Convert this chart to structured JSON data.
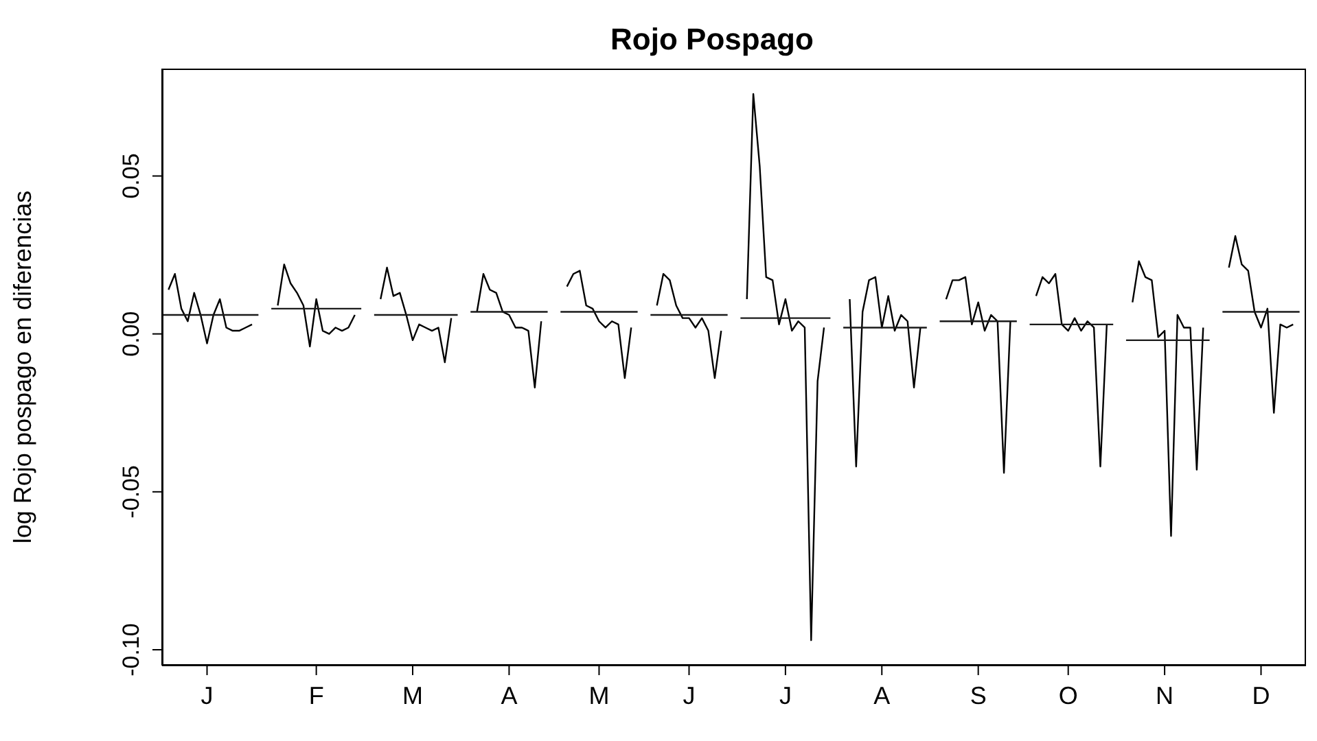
{
  "chart_data": {
    "type": "line",
    "title": "Rojo Pospago",
    "ylabel": "log Rojo pospago en diferencias",
    "categories": [
      null,
      null,
      null,
      null,
      null,
      null,
      null,
      "J",
      null,
      null,
      null,
      null,
      null,
      null,
      null,
      null,
      null,
      null,
      null,
      null,
      null,
      null,
      null,
      null,
      "F",
      null,
      null,
      null,
      null,
      null,
      null,
      null,
      null,
      null,
      null,
      null,
      null,
      null,
      null,
      "M",
      null,
      null,
      null,
      null,
      null,
      null,
      null,
      null,
      null,
      null,
      null,
      null,
      null,
      null,
      "A",
      null,
      null,
      null,
      null,
      null,
      null,
      null,
      null,
      null,
      null,
      null,
      null,
      null,
      "M",
      null,
      null,
      null,
      null,
      null,
      null,
      null,
      null,
      null,
      null,
      null,
      null,
      null,
      "J",
      null,
      null,
      null,
      null,
      null,
      null,
      null,
      null,
      null,
      null,
      null,
      null,
      null,
      null,
      "J",
      null,
      null,
      null,
      null,
      null,
      null,
      null,
      null,
      null,
      null,
      null,
      null,
      null,
      null,
      "A",
      null,
      null,
      null,
      null,
      null,
      null,
      null,
      null,
      null,
      null,
      null,
      null,
      null,
      null,
      "S",
      null,
      null,
      null,
      null,
      null,
      null,
      null,
      null,
      null,
      null,
      null,
      null,
      null,
      "O",
      null,
      null,
      null,
      null,
      null,
      null,
      null,
      null,
      null,
      null,
      null,
      null,
      null,
      null,
      "N",
      null,
      null,
      null,
      null,
      null,
      null,
      null,
      null,
      null,
      null,
      null,
      null,
      null,
      null,
      "D",
      null,
      null,
      null,
      null,
      null,
      null,
      null
    ],
    "ylim": [
      -0.105,
      0.084
    ],
    "yticks": [
      {
        "value": -0.1,
        "label": "-0.10"
      },
      {
        "value": -0.05,
        "label": "-0.05"
      },
      {
        "value": 0,
        "label": "0.00"
      },
      {
        "value": 0.05,
        "label": "0.05"
      }
    ],
    "grid": false,
    "marker": "none",
    "line_style": "solid",
    "series": [
      {
        "color": "#000000",
        "values": [
          null,
          0.014,
          0.019,
          0.008,
          0.004,
          0.013,
          0.006,
          -0.003,
          0.006,
          0.011,
          0.002,
          0.001,
          0.001,
          0.002,
          0.003,
          null,
          null,
          null,
          0.009,
          0.022,
          0.016,
          0.013,
          0.009,
          -0.004,
          0.011,
          0.001,
          0.0,
          0.002,
          0.001,
          0.002,
          0.006,
          null,
          null,
          null,
          0.011,
          0.021,
          0.012,
          0.013,
          0.006,
          -0.002,
          0.003,
          0.002,
          0.001,
          0.002,
          -0.009,
          0.005,
          null,
          null,
          null,
          0.007,
          0.019,
          0.014,
          0.013,
          0.007,
          0.006,
          0.002,
          0.002,
          0.001,
          -0.017,
          0.004,
          null,
          null,
          null,
          0.015,
          0.019,
          0.02,
          0.009,
          0.008,
          0.004,
          0.002,
          0.004,
          0.003,
          -0.014,
          0.002,
          null,
          null,
          null,
          0.009,
          0.019,
          0.017,
          0.009,
          0.005,
          0.005,
          0.002,
          0.005,
          0.001,
          -0.014,
          0.001,
          null,
          null,
          null,
          0.011,
          0.076,
          0.053,
          0.018,
          0.017,
          0.003,
          0.011,
          0.001,
          0.004,
          0.002,
          -0.097,
          -0.015,
          0.002,
          null,
          null,
          null,
          0.011,
          -0.042,
          0.007,
          0.017,
          0.018,
          0.002,
          0.012,
          0.001,
          0.006,
          0.004,
          -0.017,
          0.002,
          null,
          null,
          null,
          0.011,
          0.017,
          0.017,
          0.018,
          0.003,
          0.01,
          0.001,
          0.006,
          0.004,
          -0.044,
          0.004,
          null,
          null,
          null,
          0.012,
          0.018,
          0.016,
          0.019,
          0.003,
          0.001,
          0.005,
          0.001,
          0.004,
          0.002,
          -0.042,
          0.003,
          null,
          null,
          null,
          0.01,
          0.023,
          0.018,
          0.017,
          -0.001,
          0.001,
          -0.064,
          0.006,
          0.002,
          0.002,
          -0.043,
          0.002,
          null,
          null,
          null,
          0.021,
          0.031,
          0.022,
          0.02,
          0.007,
          0.002,
          0.008,
          -0.025,
          0.003,
          0.002,
          0.003,
          null,
          null
        ]
      },
      {
        "color": "#1a1a1a",
        "values": [
          0.006,
          0.006,
          0.006,
          0.006,
          0.006,
          0.006,
          0.006,
          0.006,
          0.006,
          0.006,
          0.006,
          0.006,
          0.006,
          0.006,
          0.006,
          0.006,
          null,
          0.008,
          0.008,
          0.008,
          0.008,
          0.008,
          0.008,
          0.008,
          0.008,
          0.008,
          0.008,
          0.008,
          0.008,
          0.008,
          0.008,
          0.008,
          null,
          0.006,
          0.006,
          0.006,
          0.006,
          0.006,
          0.006,
          0.006,
          0.006,
          0.006,
          0.006,
          0.006,
          0.006,
          0.006,
          0.006,
          null,
          0.007,
          0.007,
          0.007,
          0.007,
          0.007,
          0.007,
          0.007,
          0.007,
          0.007,
          0.007,
          0.007,
          0.007,
          0.007,
          null,
          0.007,
          0.007,
          0.007,
          0.007,
          0.007,
          0.007,
          0.007,
          0.007,
          0.007,
          0.007,
          0.007,
          0.007,
          0.007,
          null,
          0.006,
          0.006,
          0.006,
          0.006,
          0.006,
          0.006,
          0.006,
          0.006,
          0.006,
          0.006,
          0.006,
          0.006,
          0.006,
          null,
          0.005,
          0.005,
          0.005,
          0.005,
          0.005,
          0.005,
          0.005,
          0.005,
          0.005,
          0.005,
          0.005,
          0.005,
          0.005,
          0.005,
          0.005,
          null,
          0.002,
          0.002,
          0.002,
          0.002,
          0.002,
          0.002,
          0.002,
          0.002,
          0.002,
          0.002,
          0.002,
          0.002,
          0.002,
          0.002,
          null,
          0.004,
          0.004,
          0.004,
          0.004,
          0.004,
          0.004,
          0.004,
          0.004,
          0.004,
          0.004,
          0.004,
          0.004,
          0.004,
          null,
          0.003,
          0.003,
          0.003,
          0.003,
          0.003,
          0.003,
          0.003,
          0.003,
          0.003,
          0.003,
          0.003,
          0.003,
          0.003,
          0.003,
          null,
          -0.002,
          -0.002,
          -0.002,
          -0.002,
          -0.002,
          -0.002,
          -0.002,
          -0.002,
          -0.002,
          -0.002,
          -0.002,
          -0.002,
          -0.002,
          -0.002,
          null,
          0.007,
          0.007,
          0.007,
          0.007,
          0.007,
          0.007,
          0.007,
          0.007,
          0.007,
          0.007,
          0.007,
          0.007,
          0.007,
          null
        ]
      }
    ]
  }
}
